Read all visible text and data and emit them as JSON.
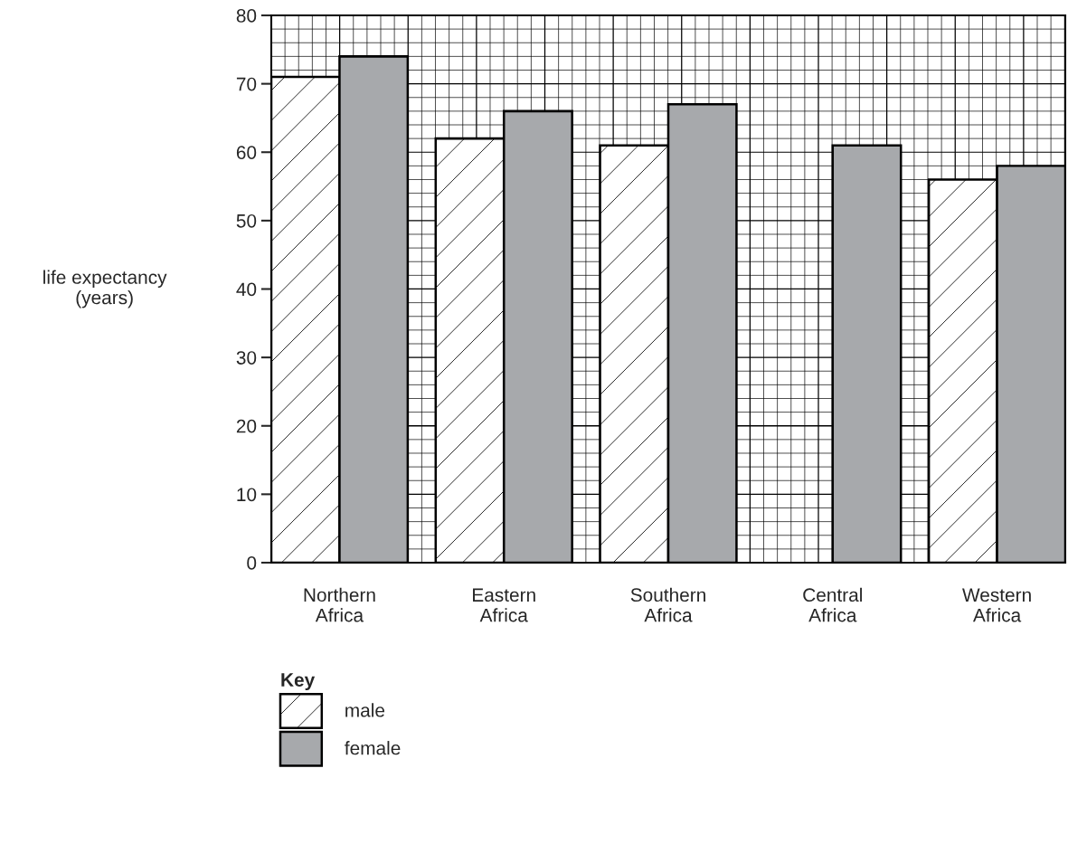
{
  "chart_data": {
    "type": "bar",
    "ylabel": "life expectancy\n(years)",
    "categories": [
      "Northern\nAfrica",
      "Eastern\nAfrica",
      "Southern\nAfrica",
      "Central\nAfrica",
      "Western\nAfrica"
    ],
    "series": [
      {
        "name": "male",
        "color": "#ffffff",
        "values": [
          71,
          62,
          61,
          null,
          56
        ]
      },
      {
        "name": "female",
        "color": "#a7a9ac",
        "values": [
          74,
          66,
          67,
          61,
          58
        ]
      }
    ],
    "ylim": [
      0,
      80
    ],
    "yticks": [
      0,
      10,
      20,
      30,
      40,
      50,
      60,
      70,
      80
    ],
    "grid": true,
    "legend": "bottom",
    "legend_title": "Key"
  }
}
